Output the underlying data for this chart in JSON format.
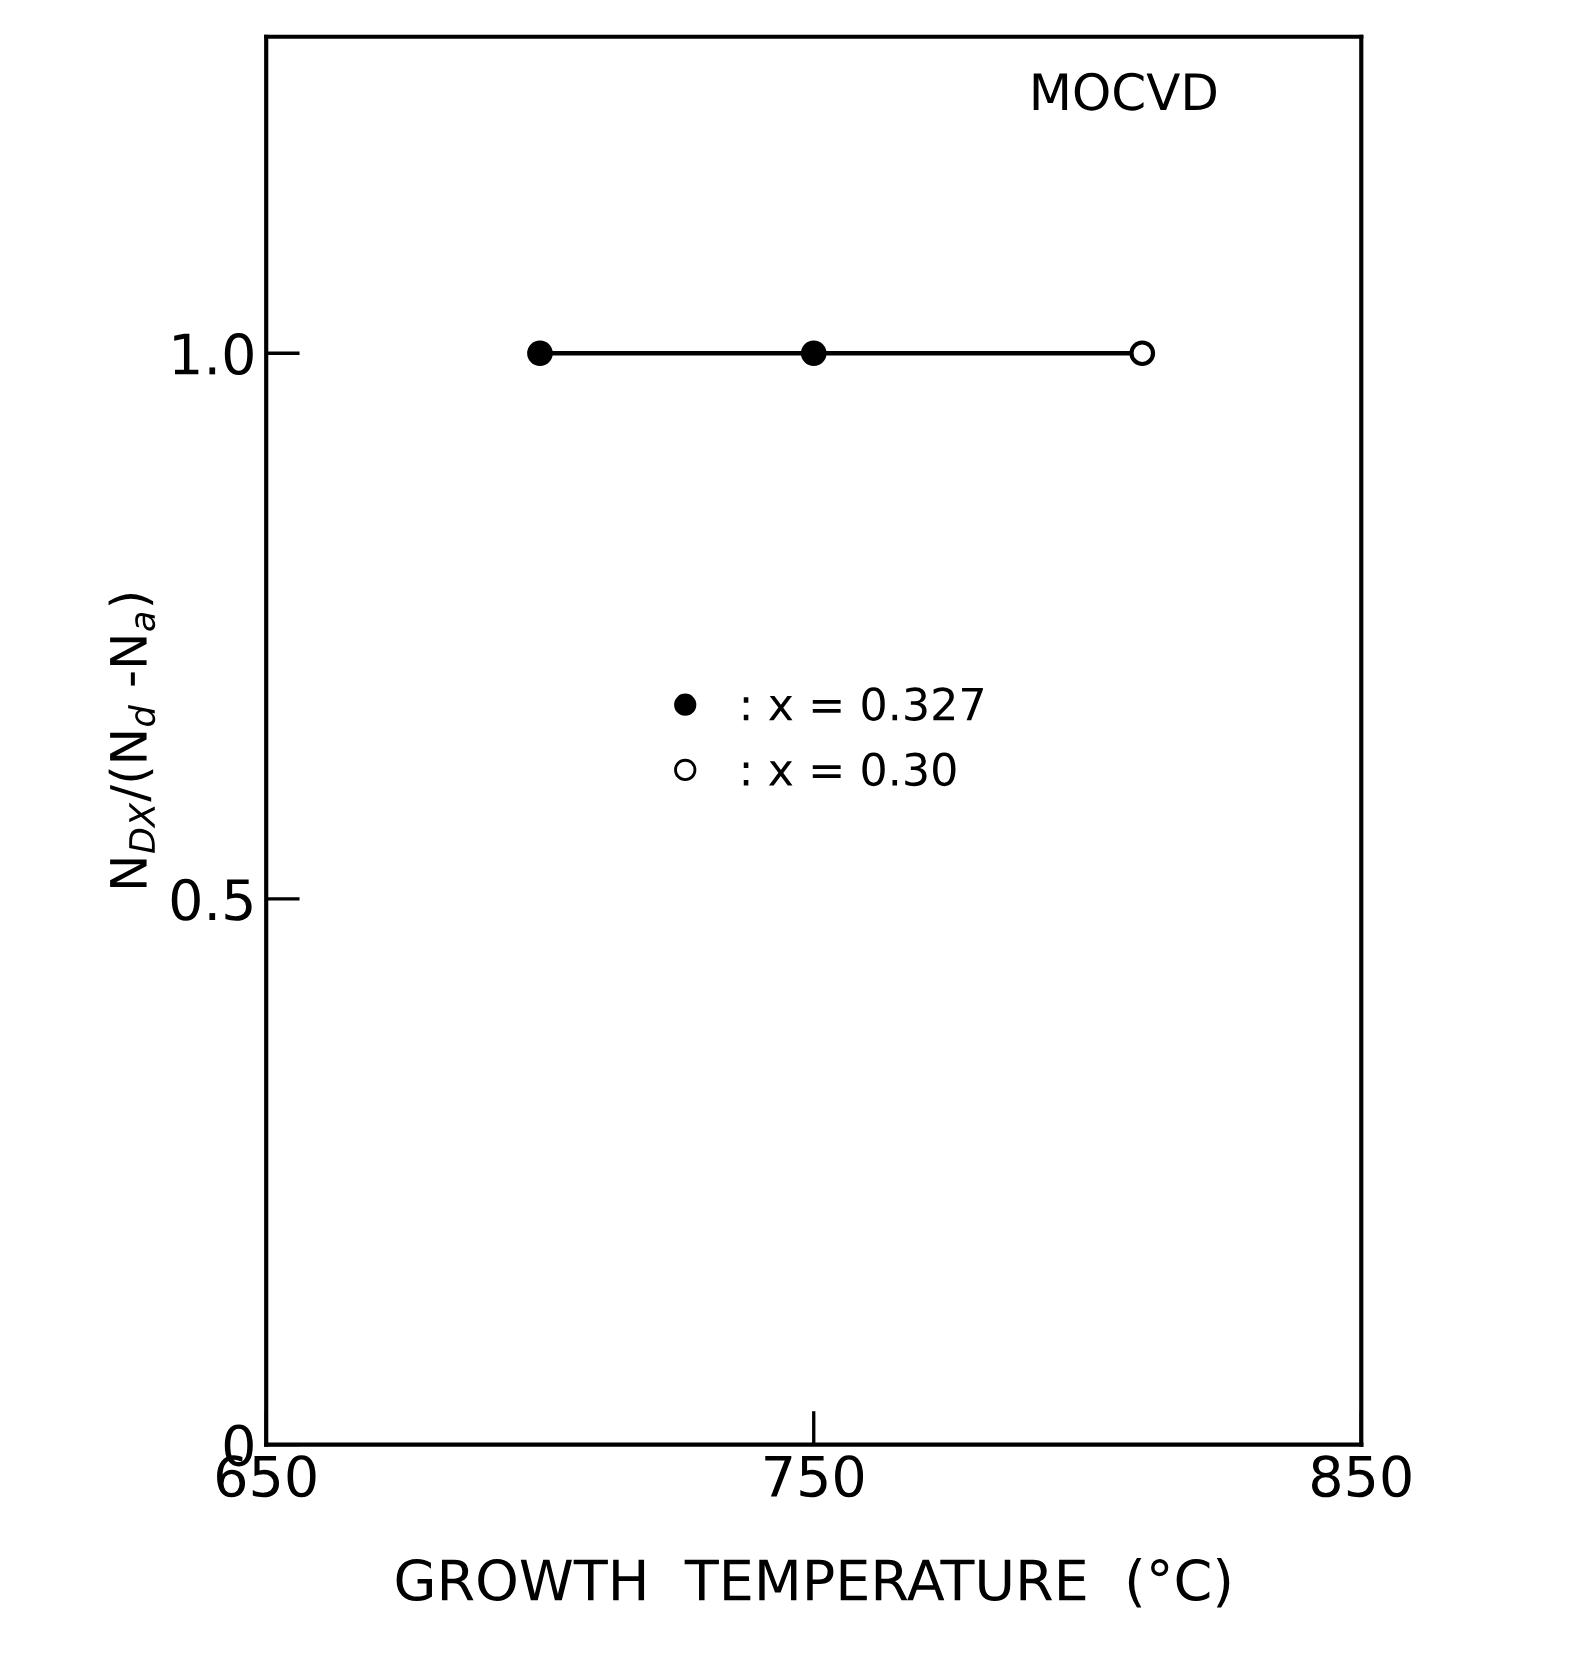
{
  "chart_data": {
    "type": "scatter",
    "xlabel": "GROWTH  TEMPERATURE  (°C)",
    "ylabel": "N$_{DX}$/(N$_{d}$ -N$_{a}$)",
    "annotations": [
      "MOCVD"
    ],
    "series": [
      {
        "type": "line",
        "color": "#000000",
        "x": [
          700,
          810
        ],
        "values": [
          1.0,
          1.0
        ],
        "marker": "none"
      },
      {
        "name": ": x = 0.327",
        "color": "#000000",
        "x": [
          700,
          750
        ],
        "values": [
          1.0,
          1.0
        ],
        "marker": "circle"
      },
      {
        "name": ": x = 0.30",
        "color": "#ffffff",
        "x": [
          810
        ],
        "values": [
          1.0
        ],
        "marker": "circle"
      }
    ],
    "xlim": [
      650,
      850
    ],
    "xticks": [
      650,
      750,
      850
    ],
    "ylim": [
      0,
      1.29
    ],
    "yticks": [
      0,
      {
        "value": 0.5,
        "label": "0.5"
      },
      {
        "value": 1.0,
        "label": "1.0"
      }
    ],
    "grid": false,
    "legend": "center"
  }
}
